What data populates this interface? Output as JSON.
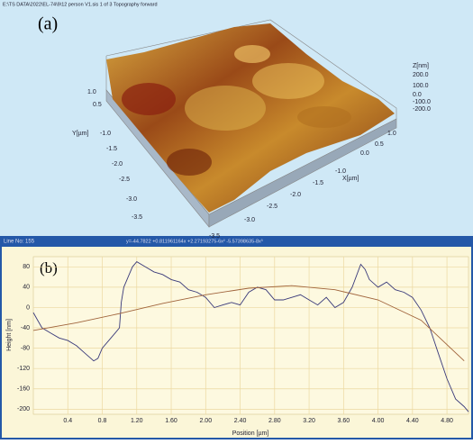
{
  "header": {
    "file": "E:\\TS DATA\\2022\\EL-74\\9\\12 person V1.sis 1 of 3 Topography forward"
  },
  "panel_a": {
    "label": "(a)",
    "z_axis": {
      "title": "Z[nm]",
      "ticks": [
        "200.0",
        "100.0",
        "0.0",
        "-100.0",
        "-200.0"
      ]
    },
    "y_axis": {
      "title": "Y[µm]",
      "ticks": [
        "1.0",
        "0.5",
        "-1.0",
        "-1.5",
        "-2.0",
        "-2.5",
        "-3.0",
        "-3.5"
      ]
    },
    "x_axis": {
      "title": "X[µm]",
      "ticks": [
        "1.0",
        "0.5",
        "0.0",
        "-1.0",
        "-1.5",
        "-2.0",
        "-2.5",
        "-3.0",
        "-3.5"
      ]
    }
  },
  "panel_b_bar": {
    "line_no": "Line No: 155",
    "formula": "y=-44.7822 +0.811961164x +2.27193275-6x² -5.57398635-8x³"
  },
  "chart_data": {
    "type": "line",
    "title": "(b)",
    "x_label": "Position [µm]",
    "y_label": "Height [nm]",
    "xlim": [
      0,
      5.05
    ],
    "ylim": [
      -210,
      100
    ],
    "xticks": [
      0.4,
      0.8,
      {
        "value": 1.2,
        "label": "1.20"
      },
      {
        "value": 1.6,
        "label": "1.60"
      },
      {
        "value": 2,
        "label": "2.00"
      },
      {
        "value": 2.4,
        "label": "2.40"
      },
      {
        "value": 2.8,
        "label": "2.80"
      },
      {
        "value": 3.2,
        "label": "3.20"
      },
      {
        "value": 3.6,
        "label": "3.60"
      },
      {
        "value": 4,
        "label": "4.00"
      },
      {
        "value": 4.4,
        "label": "4.40"
      },
      {
        "value": 4.8,
        "label": "4.80"
      }
    ],
    "yticks": [
      80,
      40,
      0,
      -40,
      -80,
      -120,
      -160,
      -200
    ],
    "grid": true,
    "series": [
      {
        "color": "#3a3a7a",
        "x": [
          0,
          0.05,
          0.1,
          0.2,
          0.3,
          0.4,
          0.5,
          0.6,
          0.7,
          0.75,
          0.8,
          0.9,
          0.95,
          1.0,
          1.02,
          1.05,
          1.1,
          1.15,
          1.2,
          1.3,
          1.4,
          1.5,
          1.6,
          1.7,
          1.8,
          1.9,
          2.0,
          2.1,
          2.2,
          2.3,
          2.4,
          2.5,
          2.6,
          2.7,
          2.8,
          2.9,
          3.0,
          3.1,
          3.2,
          3.3,
          3.4,
          3.5,
          3.6,
          3.7,
          3.8,
          3.85,
          3.9,
          4.0,
          4.1,
          4.2,
          4.3,
          4.4,
          4.5,
          4.6,
          4.7,
          4.8,
          4.9,
          5.0,
          5.05
        ],
        "values": [
          -10,
          -25,
          -40,
          -50,
          -60,
          -65,
          -75,
          -90,
          -105,
          -100,
          -80,
          -60,
          -50,
          -40,
          10,
          40,
          60,
          80,
          90,
          80,
          70,
          65,
          55,
          50,
          35,
          30,
          20,
          0,
          5,
          10,
          5,
          30,
          40,
          35,
          15,
          15,
          20,
          25,
          15,
          5,
          20,
          0,
          10,
          40,
          85,
          75,
          55,
          40,
          50,
          35,
          30,
          20,
          -5,
          -40,
          -90,
          -140,
          -180,
          -195,
          -205
        ]
      },
      {
        "color": "#a0643c",
        "x": [
          0,
          0.5,
          1.0,
          1.5,
          2.0,
          2.5,
          3.0,
          3.5,
          4.0,
          4.5,
          5.0
        ],
        "values": [
          -45,
          -30,
          -12,
          8,
          25,
          38,
          43,
          35,
          15,
          -25,
          -105
        ]
      }
    ]
  }
}
